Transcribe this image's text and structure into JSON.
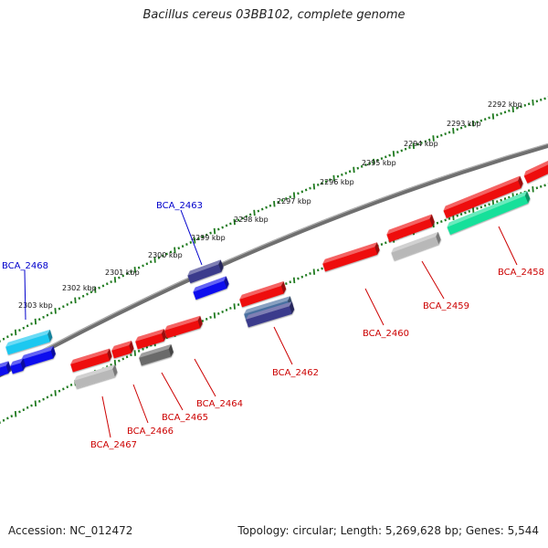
{
  "header": {
    "title": "Bacillus cereus 03BB102, complete genome"
  },
  "footer": {
    "accession": "Accession: NC_012472",
    "summary": "Topology: circular; Length: 5,269,628 bp; Genes: 5,544"
  },
  "scale": {
    "labels": [
      "2292 kbp",
      "2293 kbp",
      "2294 kbp",
      "2295 kbp",
      "2296 kbp",
      "2297 kbp",
      "2298 kbp",
      "2299 kbp",
      "2300 kbp",
      "2301 kbp",
      "2302 kbp",
      "2303 kbp"
    ]
  },
  "genes": {
    "forward": [
      {
        "label": "BCA_2463",
        "color": "#0000cc"
      },
      {
        "label": "BCA_2468",
        "color": "#0000cc"
      }
    ],
    "reverse": [
      {
        "label": "BCA_2458",
        "color": "#cc0000"
      },
      {
        "label": "BCA_2459",
        "color": "#cc0000"
      },
      {
        "label": "BCA_2460",
        "color": "#cc0000"
      },
      {
        "label": "BCA_2462",
        "color": "#cc0000"
      },
      {
        "label": "BCA_2464",
        "color": "#cc0000"
      },
      {
        "label": "BCA_2465",
        "color": "#cc0000"
      },
      {
        "label": "BCA_2466",
        "color": "#cc0000"
      },
      {
        "label": "BCA_2467",
        "color": "#cc0000"
      }
    ]
  },
  "colors": {
    "backbone": "#7a7a7a",
    "ticks": "#1f7a1f",
    "red": "#ee1111",
    "blue": "#1010ee",
    "cyan": "#1cc8f0",
    "navy": "#3a3a8c",
    "steel": "#4a6fa0",
    "gray": "#b8b8b8",
    "darkgray": "#6a6a6a",
    "green": "#18e09a"
  }
}
